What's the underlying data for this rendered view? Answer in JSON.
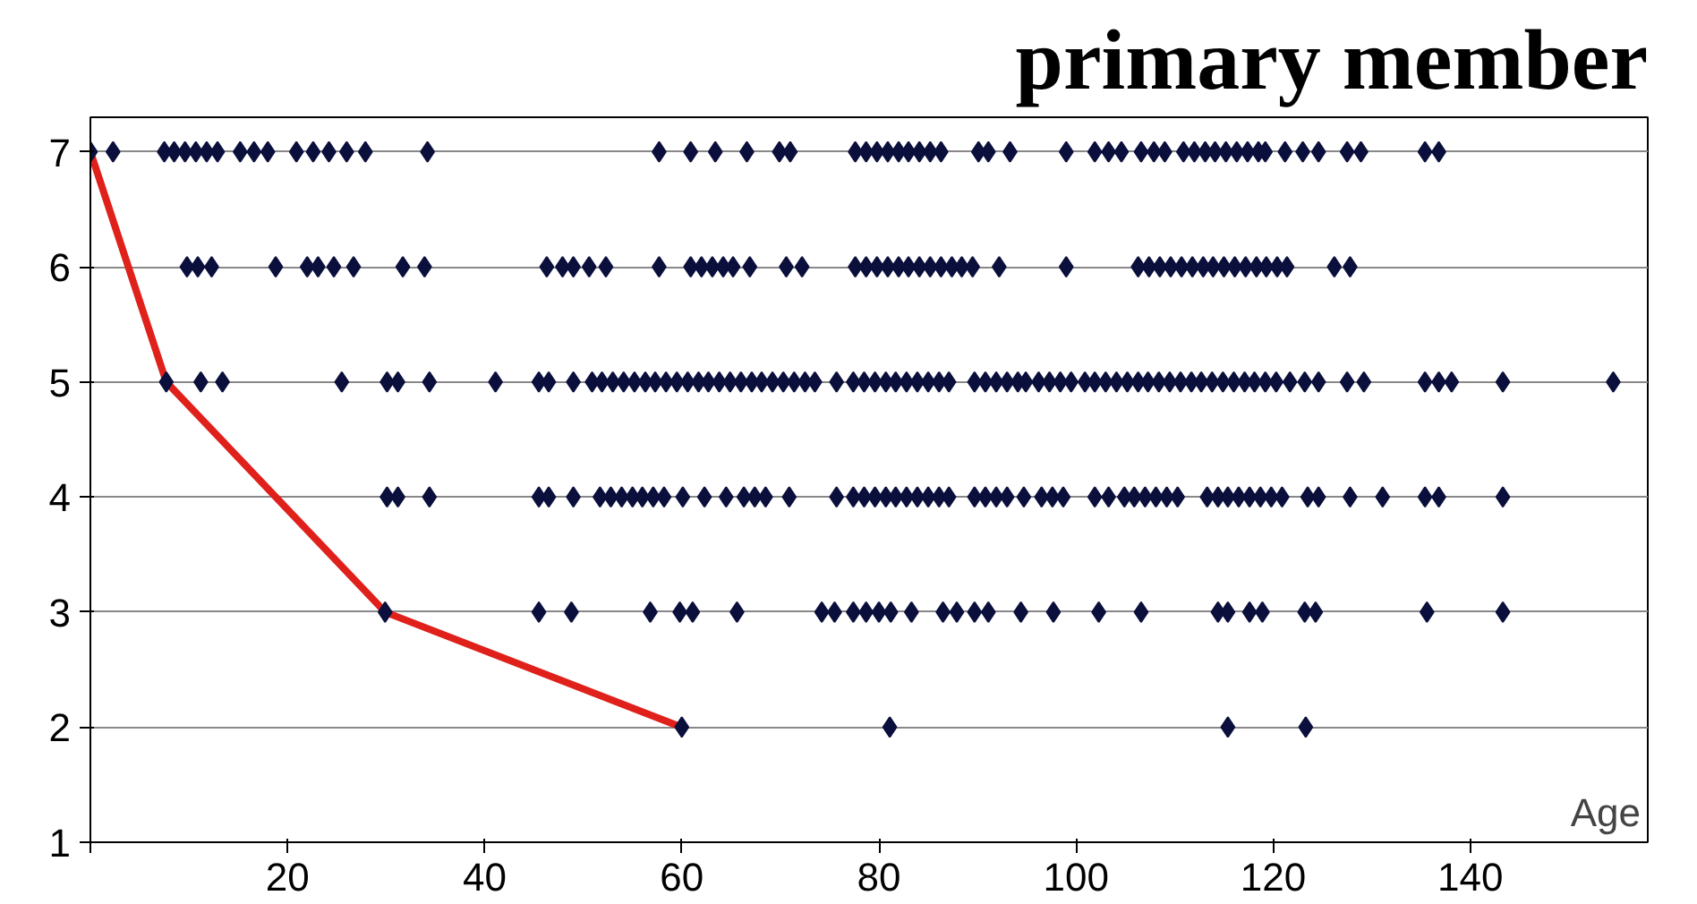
{
  "chart_data": {
    "type": "scatter",
    "title": "primary member",
    "xlabel": "Age",
    "xlim": [
      0,
      158
    ],
    "ylim": [
      1,
      7.3
    ],
    "xticks": [
      {
        "value": 0,
        "label": null
      },
      20,
      40,
      60,
      80,
      100,
      120,
      140
    ],
    "yticks": [
      1,
      2,
      3,
      4,
      5,
      6,
      7
    ],
    "grid": "y",
    "marker": "diamond",
    "series": [
      {
        "color": "#0a0f3c",
        "x": [
          0,
          2.3,
          7.5,
          8.5,
          9.6,
          10.7,
          11.8,
          12.9,
          15.2,
          16.6,
          18,
          20.9,
          22.6,
          24.2,
          26,
          27.9,
          34.2,
          57.7,
          60.9,
          63.4,
          66.6,
          69.9,
          71,
          77.6,
          78.7,
          79.8,
          80.9,
          82,
          83,
          84.1,
          85.2,
          86.3,
          90.1,
          91.1,
          93.3,
          99,
          101.9,
          103.3,
          104.6,
          106.6,
          107.9,
          109,
          110.9,
          112,
          113.1,
          114.1,
          115.2,
          116.3,
          117.4,
          118.5,
          119.2,
          121.2,
          123,
          124.6,
          127.5,
          128.9,
          135.4,
          136.8
        ],
        "values": [
          7,
          7,
          7,
          7,
          7,
          7,
          7,
          7,
          7,
          7,
          7,
          7,
          7,
          7,
          7,
          7,
          7,
          7,
          7,
          7,
          7,
          7,
          7,
          7,
          7,
          7,
          7,
          7,
          7,
          7,
          7,
          7,
          7,
          7,
          7,
          7,
          7,
          7,
          7,
          7,
          7,
          7,
          7,
          7,
          7,
          7,
          7,
          7,
          7,
          7,
          7,
          7,
          7,
          7,
          7,
          7,
          7,
          7
        ]
      },
      {
        "color": "#0a0f3c",
        "x": [
          9.8,
          10.9,
          12.3,
          18.8,
          22,
          23.1,
          24.7,
          26.7,
          31.7,
          33.9,
          46.3,
          47.9,
          49,
          50.6,
          52.3,
          57.7,
          60.9,
          62,
          63.1,
          64.2,
          65.2,
          66.9,
          70.6,
          72.2,
          77.6,
          78.7,
          79.8,
          80.9,
          82,
          83,
          84.1,
          85.2,
          86.3,
          87.4,
          88.4,
          89.5,
          92.2,
          99,
          106.3,
          107.4,
          108.5,
          109.6,
          110.7,
          111.8,
          112.9,
          113.9,
          115,
          116.1,
          117.2,
          118.3,
          119.3,
          120.4,
          121.4,
          126.2,
          127.8
        ],
        "values": [
          6,
          6,
          6,
          6,
          6,
          6,
          6,
          6,
          6,
          6,
          6,
          6,
          6,
          6,
          6,
          6,
          6,
          6,
          6,
          6,
          6,
          6,
          6,
          6,
          6,
          6,
          6,
          6,
          6,
          6,
          6,
          6,
          6,
          6,
          6,
          6,
          6,
          6,
          6,
          6,
          6,
          6,
          6,
          6,
          6,
          6,
          6,
          6,
          6,
          6,
          6,
          6,
          6,
          6,
          6
        ]
      },
      {
        "color": "#0a0f3c",
        "x": [
          7.7,
          11.2,
          13.4,
          25.5,
          30.1,
          31.2,
          34.4,
          41.1,
          45.5,
          46.5,
          49,
          50.9,
          51.9,
          53,
          54.1,
          55.2,
          56.3,
          57.3,
          58.4,
          59.5,
          60.6,
          61.7,
          62.7,
          63.8,
          64.9,
          66,
          67.1,
          68.1,
          69.2,
          70.3,
          71.4,
          72.5,
          73.5,
          75.7,
          77.4,
          78.5,
          79.6,
          80.7,
          81.7,
          82.8,
          83.9,
          85,
          86.1,
          87.1,
          89.7,
          90.8,
          91.9,
          93,
          94.1,
          94.9,
          96.2,
          97.3,
          98.4,
          99.5,
          100.9,
          101.9,
          103,
          104.1,
          105.2,
          106.3,
          107.3,
          108.4,
          109.5,
          110.6,
          111.7,
          112.7,
          113.8,
          114.9,
          116,
          117.1,
          118.1,
          119.2,
          120.3,
          121.7,
          123.2,
          124.6,
          127.5,
          129.2,
          135.4,
          136.8,
          138.1,
          143.3,
          154.5
        ],
        "values": [
          5,
          5,
          5,
          5,
          5,
          5,
          5,
          5,
          5,
          5,
          5,
          5,
          5,
          5,
          5,
          5,
          5,
          5,
          5,
          5,
          5,
          5,
          5,
          5,
          5,
          5,
          5,
          5,
          5,
          5,
          5,
          5,
          5,
          5,
          5,
          5,
          5,
          5,
          5,
          5,
          5,
          5,
          5,
          5,
          5,
          5,
          5,
          5,
          5,
          5,
          5,
          5,
          5,
          5,
          5,
          5,
          5,
          5,
          5,
          5,
          5,
          5,
          5,
          5,
          5,
          5,
          5,
          5,
          5,
          5,
          5,
          5,
          5,
          5,
          5,
          5,
          5,
          5,
          5,
          5,
          5,
          5,
          5
        ]
      },
      {
        "color": "#0a0f3c",
        "x": [
          30.1,
          31.2,
          34.4,
          45.5,
          46.5,
          49,
          51.7,
          52.8,
          53.9,
          55,
          56,
          57.1,
          58.2,
          60.1,
          62.3,
          64.5,
          66.3,
          67.4,
          68.5,
          70.9,
          75.7,
          77.4,
          78.5,
          79.6,
          80.7,
          81.7,
          82.8,
          83.9,
          85,
          86.1,
          87.1,
          89.7,
          90.8,
          91.9,
          93,
          94.7,
          96.5,
          97.6,
          98.7,
          101.9,
          103.3,
          104.9,
          105.9,
          107,
          108.1,
          109.2,
          110.3,
          113.3,
          114.4,
          115.4,
          116.5,
          117.6,
          118.7,
          119.8,
          120.9,
          123.5,
          124.6,
          127.8,
          131.1,
          135.4,
          136.8,
          143.3
        ],
        "values": [
          4,
          4,
          4,
          4,
          4,
          4,
          4,
          4,
          4,
          4,
          4,
          4,
          4,
          4,
          4,
          4,
          4,
          4,
          4,
          4,
          4,
          4,
          4,
          4,
          4,
          4,
          4,
          4,
          4,
          4,
          4,
          4,
          4,
          4,
          4,
          4,
          4,
          4,
          4,
          4,
          4,
          4,
          4,
          4,
          4,
          4,
          4,
          4,
          4,
          4,
          4,
          4,
          4,
          4,
          4,
          4,
          4,
          4,
          4,
          4,
          4,
          4
        ]
      },
      {
        "color": "#0a0f3c",
        "x": [
          29.9,
          45.5,
          48.8,
          56.8,
          59.8,
          61.1,
          65.6,
          74.2,
          75.5,
          77.4,
          78.7,
          80,
          81.2,
          83.3,
          86.5,
          87.9,
          89.7,
          91.1,
          94.4,
          97.7,
          102.3,
          106.6,
          114.4,
          115.4,
          117.6,
          118.9,
          123.2,
          124.3,
          135.6,
          143.3
        ],
        "values": [
          3,
          3,
          3,
          3,
          3,
          3,
          3,
          3,
          3,
          3,
          3,
          3,
          3,
          3,
          3,
          3,
          3,
          3,
          3,
          3,
          3,
          3,
          3,
          3,
          3,
          3,
          3,
          3,
          3,
          3
        ]
      },
      {
        "color": "#0a0f3c",
        "x": [
          60,
          81.1,
          115.4,
          123.3
        ],
        "values": [
          2,
          2,
          2,
          2
        ]
      },
      {
        "type": "line",
        "color": "#e0201b",
        "marker": "none",
        "x": [
          0,
          7.7,
          29.9,
          60
        ],
        "values": [
          7,
          5,
          3,
          2
        ]
      }
    ]
  }
}
